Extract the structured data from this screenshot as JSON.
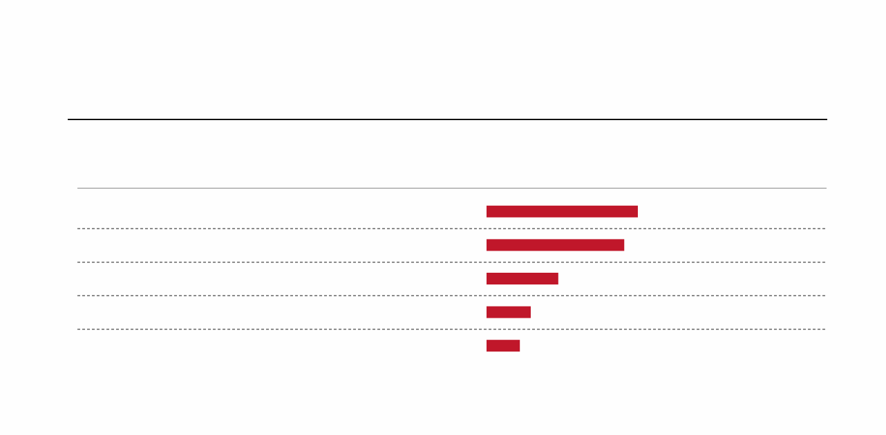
{
  "chart_data": {
    "type": "bar",
    "orientation": "horizontal",
    "categories": [
      null,
      null,
      null,
      null,
      null
    ],
    "values": [
      44.5,
      40.5,
      21.1,
      13,
      9.8
    ],
    "color": "#c0172a",
    "xlim": [
      0,
      100
    ]
  }
}
